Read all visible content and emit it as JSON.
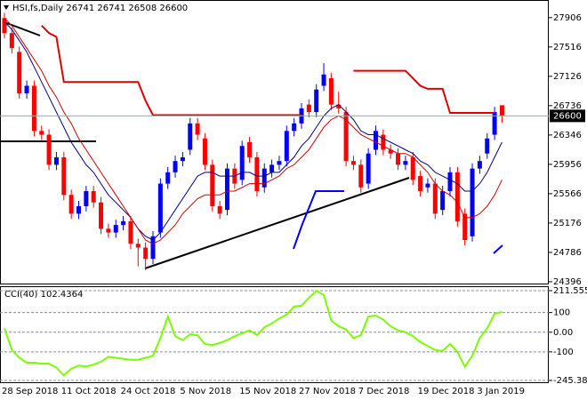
{
  "chart_data": [
    {
      "type": "candlestick",
      "title": "HSI,fs,Daily  26741 26741 26508 26600",
      "categories": [
        "28 Sep 2018",
        null,
        null,
        null,
        null,
        null,
        null,
        null,
        "11 Oct 2018",
        null,
        null,
        null,
        null,
        null,
        null,
        null,
        "24 Oct 2018",
        null,
        null,
        null,
        null,
        null,
        null,
        null,
        "5 Nov 2018",
        null,
        null,
        null,
        null,
        null,
        null,
        null,
        "15 Nov 2018",
        null,
        null,
        null,
        null,
        null,
        null,
        null,
        "27 Nov 2018",
        null,
        null,
        null,
        null,
        null,
        null,
        null,
        "7 Dec 2018",
        null,
        null,
        null,
        null,
        null,
        null,
        null,
        "19 Dec 2018",
        null,
        null,
        null,
        null,
        null,
        null,
        null,
        "3 Jan 2019",
        null,
        null,
        null
      ],
      "open": [
        27900,
        27700,
        27450,
        26900,
        27000,
        26400,
        26350,
        25950,
        26050,
        25550,
        25300,
        25400,
        25600,
        25450,
        25100,
        25050,
        25150,
        25200,
        24900,
        24850,
        24700,
        25050,
        25700,
        25850,
        26000,
        26150,
        26500,
        26300,
        25950,
        25400,
        25350,
        25900,
        25750,
        26250,
        26050,
        25650,
        25850,
        25950,
        26000,
        26400,
        26500,
        26750,
        26650,
        27000,
        27100,
        26750,
        26650,
        26000,
        25950,
        25700,
        26150,
        26350,
        26150,
        26100,
        25950,
        26050,
        25800,
        25650,
        25700,
        25350,
        25600,
        25850,
        25300,
        25000,
        25900,
        26100,
        26350,
        26741
      ],
      "high": [
        27970,
        27770,
        27520,
        27070,
        27070,
        26470,
        26420,
        26120,
        26120,
        25620,
        25470,
        25670,
        25670,
        25520,
        25170,
        25220,
        25270,
        25270,
        24970,
        24920,
        25070,
        25770,
        25920,
        26070,
        26120,
        26570,
        26570,
        26370,
        26020,
        25470,
        25970,
        25970,
        26270,
        26320,
        26120,
        25970,
        26020,
        26070,
        26470,
        26570,
        26770,
        26820,
        27020,
        27300,
        27170,
        26920,
        26720,
        26070,
        26020,
        26170,
        26470,
        26420,
        26220,
        26170,
        26070,
        26120,
        25870,
        25770,
        25770,
        25670,
        25920,
        25920,
        25370,
        25970,
        26070,
        26370,
        26720,
        26741
      ],
      "low": [
        27630,
        27430,
        26830,
        26830,
        26330,
        26280,
        25880,
        25880,
        25480,
        25230,
        25230,
        25330,
        25380,
        25030,
        24980,
        24980,
        25080,
        24830,
        24600,
        24550,
        24630,
        24980,
        25630,
        25780,
        25930,
        26080,
        26280,
        25880,
        25330,
        25230,
        25280,
        25630,
        25680,
        25980,
        25530,
        25580,
        25780,
        25880,
        25930,
        26330,
        26430,
        26580,
        26580,
        26930,
        26680,
        26630,
        25930,
        25880,
        25580,
        25630,
        26080,
        26080,
        26030,
        25880,
        25880,
        25680,
        25530,
        25580,
        25230,
        25280,
        25530,
        25130,
        24880,
        24930,
        25830,
        26030,
        26280,
        26508
      ],
      "close": [
        27700,
        27500,
        26900,
        27000,
        26400,
        26350,
        25950,
        26050,
        25550,
        25300,
        25400,
        25600,
        25450,
        25100,
        25050,
        25150,
        25200,
        24900,
        24850,
        24700,
        25000,
        25700,
        25850,
        26000,
        26050,
        26500,
        26350,
        25950,
        25400,
        25300,
        25900,
        25700,
        26200,
        26050,
        25600,
        25900,
        25950,
        26000,
        26400,
        26500,
        26700,
        26650,
        26950,
        27150,
        26750,
        26700,
        26000,
        25950,
        25650,
        26100,
        26400,
        26150,
        26100,
        25950,
        26000,
        25750,
        25600,
        25700,
        25300,
        25600,
        25850,
        25200,
        24950,
        25900,
        26000,
        26300,
        26650,
        26600
      ],
      "up_color": "#0000ff",
      "down_color": "#ff0000",
      "series": [
        {
          "color": "#000080",
          "values": [
            27850,
            27750,
            27600,
            27450,
            27250,
            27050,
            26850,
            26650,
            26450,
            26250,
            26100,
            25950,
            25850,
            25700,
            25550,
            25450,
            25350,
            25250,
            25100,
            25000,
            24950,
            25050,
            25200,
            25350,
            25500,
            25650,
            25800,
            25850,
            25850,
            25800,
            25800,
            25800,
            25850,
            25850,
            25800,
            25800,
            25850,
            25850,
            25950,
            26050,
            26200,
            26300,
            26450,
            26600,
            26700,
            26750,
            26650,
            26550,
            26400,
            26350,
            26350,
            26300,
            26250,
            26200,
            26150,
            26100,
            26000,
            25950,
            25850,
            25800,
            25750,
            25700,
            25600,
            25600,
            25700,
            25850,
            26050,
            26250
          ]
        },
        {
          "color": "#d00000",
          "values": [
            27900,
            27800,
            27650,
            27500,
            27350,
            27200,
            27000,
            26850,
            26650,
            26500,
            26300,
            26150,
            26000,
            25850,
            25700,
            25550,
            25400,
            25250,
            25100,
            24950,
            24900,
            24950,
            25050,
            25150,
            25300,
            25400,
            25500,
            25550,
            25550,
            25550,
            25600,
            25600,
            25650,
            25700,
            25700,
            25700,
            25750,
            25800,
            25900,
            25950,
            26050,
            26150,
            26300,
            26450,
            26550,
            26600,
            26550,
            26450,
            26350,
            26300,
            26250,
            26200,
            26150,
            26100,
            26100,
            26050,
            25950,
            25850,
            25700,
            25600,
            25550,
            25450,
            25250,
            25250,
            25300,
            25400,
            25550,
            25750
          ]
        },
        {
          "color": "#e00000",
          "width": 2,
          "values": [
            null,
            null,
            null,
            null,
            null,
            27800,
            27700,
            27650,
            27050,
            27050,
            27050,
            27050,
            27050,
            27050,
            27050,
            27050,
            27050,
            27050,
            27050,
            26800,
            26610,
            26610,
            26610,
            26610,
            26610,
            26610,
            26610,
            26610,
            26610,
            26610,
            26610,
            26610,
            26610,
            26610,
            26610,
            26610,
            26610,
            26610,
            26610,
            26610,
            26610,
            null,
            null,
            null,
            null,
            null,
            null,
            27200,
            27200,
            27200,
            27200,
            27200,
            27200,
            27200,
            27200,
            27100,
            27000,
            26960,
            26960,
            26960,
            26640,
            26640,
            26640,
            26640,
            26640,
            26640,
            26640,
            null
          ]
        }
      ],
      "ylim": [
        24360,
        28140
      ],
      "yticks": [
        27906,
        27516,
        27126,
        26736,
        26346,
        25956,
        25566,
        25176,
        24786,
        24396
      ],
      "last_price": 26600
    },
    {
      "type": "line",
      "title": "CCI(40) 102.4364",
      "series": [
        {
          "color": "#7cfc00",
          "values": [
            20,
            -90,
            -130,
            -155,
            -155,
            -160,
            -160,
            -180,
            -220,
            -185,
            -170,
            -175,
            -165,
            -150,
            -125,
            -130,
            -135,
            -140,
            -140,
            -130,
            -120,
            -30,
            80,
            -20,
            -40,
            -10,
            -15,
            -60,
            -65,
            -55,
            -40,
            -20,
            -5,
            10,
            -15,
            25,
            45,
            70,
            90,
            130,
            135,
            175,
            211,
            190,
            60,
            30,
            15,
            -30,
            -15,
            80,
            85,
            65,
            30,
            10,
            0,
            -20,
            -50,
            -70,
            -90,
            -95,
            -60,
            -100,
            -175,
            -120,
            -30,
            20,
            95,
            102.4364
          ]
        }
      ],
      "ylim": [
        -245.384,
        211.5552
      ],
      "yticks": [
        211.5552,
        100,
        {
          "value": 0,
          "label": "0.00"
        },
        -100,
        -245.384
      ]
    }
  ]
}
